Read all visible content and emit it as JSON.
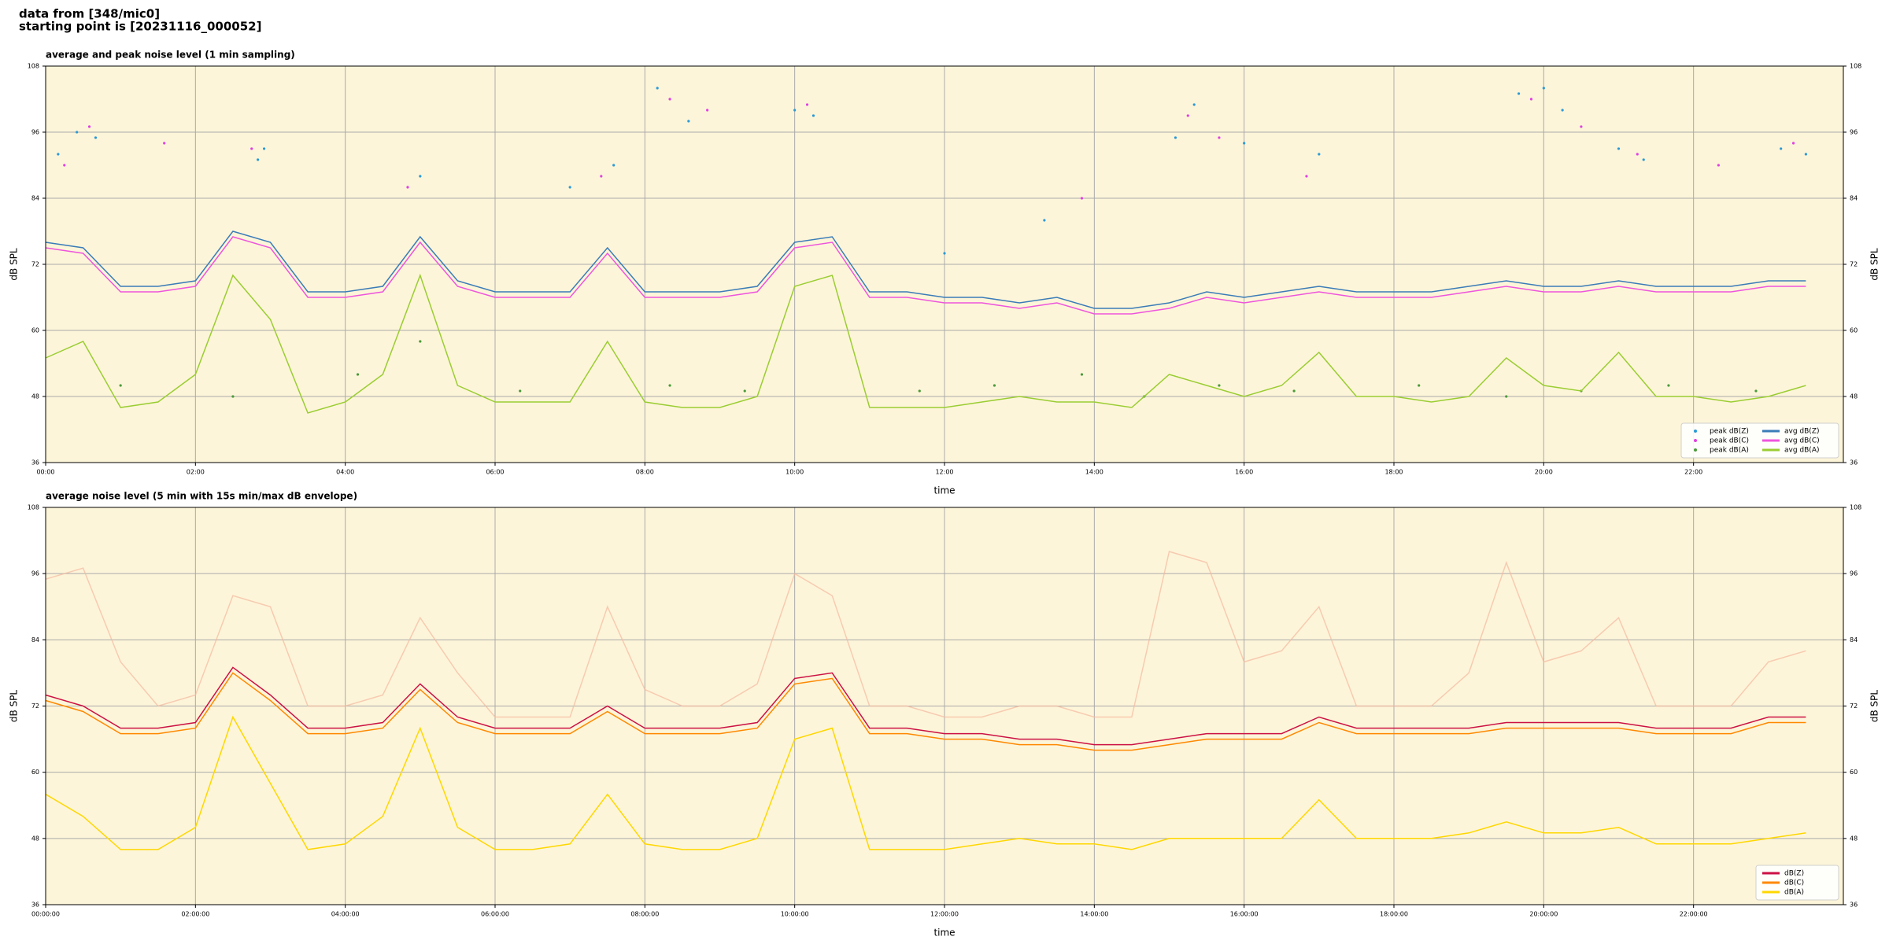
{
  "header": {
    "lines": [
      "data from [348/mic0]",
      "starting point is [20231116_000052]"
    ]
  },
  "chart_data": [
    {
      "type": "line",
      "title": "average and peak noise level (1 min sampling)",
      "x_label": "time",
      "y_label": "dB SPL",
      "xlim": [
        0,
        1440
      ],
      "ylim": [
        36,
        108
      ],
      "yticks": [
        36,
        48,
        60,
        72,
        84,
        96,
        108
      ],
      "xticks": [
        {
          "value": 0,
          "label": "00:00"
        },
        {
          "value": 120,
          "label": "02:00"
        },
        {
          "value": 240,
          "label": "04:00"
        },
        {
          "value": 360,
          "label": "06:00"
        },
        {
          "value": 480,
          "label": "08:00"
        },
        {
          "value": 600,
          "label": "10:00"
        },
        {
          "value": 720,
          "label": "12:00"
        },
        {
          "value": 840,
          "label": "14:00"
        },
        {
          "value": 960,
          "label": "16:00"
        },
        {
          "value": 1080,
          "label": "18:00"
        },
        {
          "value": 1200,
          "label": "20:00"
        },
        {
          "value": 1320,
          "label": "22:00"
        }
      ],
      "grid": true,
      "legend": "lower right",
      "legend_columns": 2,
      "background": "#fdf5d9",
      "x": [
        0,
        30,
        60,
        90,
        120,
        150,
        180,
        210,
        240,
        270,
        300,
        330,
        360,
        390,
        420,
        450,
        480,
        510,
        540,
        570,
        600,
        630,
        660,
        690,
        720,
        750,
        780,
        810,
        840,
        870,
        900,
        930,
        960,
        990,
        1020,
        1050,
        1080,
        1110,
        1140,
        1170,
        1200,
        1230,
        1260,
        1290,
        1320,
        1350,
        1380,
        1410
      ],
      "series": [
        {
          "name": "peak dB(Z)",
          "color": "#2a9ad6",
          "style": "points",
          "x": [
            10,
            25,
            40,
            170,
            175,
            300,
            420,
            455,
            490,
            515,
            600,
            615,
            720,
            800,
            905,
            920,
            960,
            1020,
            1180,
            1200,
            1215,
            1260,
            1280,
            1390,
            1410
          ],
          "values": [
            92,
            96,
            95,
            91,
            93,
            88,
            86,
            90,
            104,
            98,
            100,
            99,
            74,
            80,
            95,
            101,
            94,
            92,
            103,
            104,
            100,
            93,
            91,
            93,
            92
          ]
        },
        {
          "name": "peak dB(C)",
          "color": "#e040e0",
          "style": "points",
          "x": [
            15,
            35,
            95,
            165,
            290,
            445,
            500,
            530,
            610,
            830,
            915,
            940,
            1010,
            1190,
            1230,
            1275,
            1340,
            1400
          ],
          "values": [
            90,
            97,
            94,
            93,
            86,
            88,
            102,
            100,
            101,
            84,
            99,
            95,
            88,
            102,
            97,
            92,
            90,
            94
          ]
        },
        {
          "name": "peak dB(A)",
          "color": "#4a9a3a",
          "style": "points",
          "x": [
            60,
            150,
            250,
            300,
            380,
            500,
            560,
            700,
            760,
            830,
            880,
            940,
            1000,
            1100,
            1170,
            1230,
            1300,
            1370
          ],
          "values": [
            50,
            48,
            52,
            58,
            49,
            50,
            49,
            49,
            50,
            52,
            48,
            50,
            49,
            50,
            48,
            49,
            50,
            49
          ]
        },
        {
          "name": "avg dB(Z)",
          "color": "#3a7cb8",
          "style": "line",
          "values": [
            76,
            75,
            68,
            68,
            69,
            78,
            76,
            67,
            67,
            68,
            77,
            69,
            67,
            67,
            67,
            75,
            67,
            67,
            67,
            68,
            76,
            77,
            67,
            67,
            66,
            66,
            65,
            66,
            64,
            64,
            65,
            67,
            66,
            67,
            68,
            67,
            67,
            67,
            68,
            69,
            68,
            68,
            69,
            68,
            68,
            68,
            69,
            69
          ]
        },
        {
          "name": "avg dB(C)",
          "color": "#ee55dd",
          "style": "line",
          "values": [
            75,
            74,
            67,
            67,
            68,
            77,
            75,
            66,
            66,
            67,
            76,
            68,
            66,
            66,
            66,
            74,
            66,
            66,
            66,
            67,
            75,
            76,
            66,
            66,
            65,
            65,
            64,
            65,
            63,
            63,
            64,
            66,
            65,
            66,
            67,
            66,
            66,
            66,
            67,
            68,
            67,
            67,
            68,
            67,
            67,
            67,
            68,
            68
          ]
        },
        {
          "name": "avg dB(A)",
          "color": "#9acd32",
          "style": "line",
          "values": [
            55,
            58,
            46,
            47,
            52,
            70,
            62,
            45,
            47,
            52,
            70,
            50,
            47,
            47,
            47,
            58,
            47,
            46,
            46,
            48,
            68,
            70,
            46,
            46,
            46,
            47,
            48,
            47,
            47,
            46,
            52,
            50,
            48,
            50,
            56,
            48,
            48,
            47,
            48,
            55,
            50,
            49,
            56,
            48,
            48,
            47,
            48,
            50
          ]
        }
      ]
    },
    {
      "type": "line",
      "title": "average noise level (5 min with 15s min/max dB envelope)",
      "x_label": "time",
      "y_label": "dB SPL",
      "xlim": [
        0,
        1440
      ],
      "ylim": [
        36,
        108
      ],
      "yticks": [
        36,
        48,
        60,
        72,
        84,
        96,
        108
      ],
      "xticks": [
        {
          "value": 0,
          "label": "00:00:00"
        },
        {
          "value": 120,
          "label": "02:00:00"
        },
        {
          "value": 240,
          "label": "04:00:00"
        },
        {
          "value": 360,
          "label": "06:00:00"
        },
        {
          "value": 480,
          "label": "08:00:00"
        },
        {
          "value": 600,
          "label": "10:00:00"
        },
        {
          "value": 720,
          "label": "12:00:00"
        },
        {
          "value": 840,
          "label": "14:00:00"
        },
        {
          "value": 960,
          "label": "16:00:00"
        },
        {
          "value": 1080,
          "label": "18:00:00"
        },
        {
          "value": 1200,
          "label": "20:00:00"
        },
        {
          "value": 1320,
          "label": "22:00:00"
        }
      ],
      "grid": true,
      "legend": "lower right",
      "legend_columns": 1,
      "background": "#fdf5d9",
      "x": [
        0,
        30,
        60,
        90,
        120,
        150,
        180,
        210,
        240,
        270,
        300,
        330,
        360,
        390,
        420,
        450,
        480,
        510,
        540,
        570,
        600,
        630,
        660,
        690,
        720,
        750,
        780,
        810,
        840,
        870,
        900,
        930,
        960,
        990,
        1020,
        1050,
        1080,
        1110,
        1140,
        1170,
        1200,
        1230,
        1260,
        1290,
        1320,
        1350,
        1380,
        1410
      ],
      "envelope": {
        "color": "#f4b9a0",
        "values": [
          95,
          97,
          80,
          72,
          74,
          92,
          90,
          72,
          72,
          74,
          88,
          78,
          70,
          70,
          70,
          90,
          75,
          72,
          72,
          76,
          96,
          92,
          72,
          72,
          70,
          70,
          72,
          72,
          70,
          70,
          100,
          98,
          80,
          82,
          90,
          72,
          72,
          72,
          78,
          98,
          80,
          82,
          88,
          72,
          72,
          72,
          80,
          82
        ]
      },
      "series": [
        {
          "name": "dB(Z)",
          "color": "#cc1144",
          "style": "line",
          "values": [
            74,
            72,
            68,
            68,
            69,
            79,
            74,
            68,
            68,
            69,
            76,
            70,
            68,
            68,
            68,
            72,
            68,
            68,
            68,
            69,
            77,
            78,
            68,
            68,
            67,
            67,
            66,
            66,
            65,
            65,
            66,
            67,
            67,
            67,
            70,
            68,
            68,
            68,
            68,
            69,
            69,
            69,
            69,
            68,
            68,
            68,
            70,
            70
          ]
        },
        {
          "name": "dB(C)",
          "color": "#ff8800",
          "style": "line",
          "values": [
            73,
            71,
            67,
            67,
            68,
            78,
            73,
            67,
            67,
            68,
            75,
            69,
            67,
            67,
            67,
            71,
            67,
            67,
            67,
            68,
            76,
            77,
            67,
            67,
            66,
            66,
            65,
            65,
            64,
            64,
            65,
            66,
            66,
            66,
            69,
            67,
            67,
            67,
            67,
            68,
            68,
            68,
            68,
            67,
            67,
            67,
            69,
            69
          ]
        },
        {
          "name": "dB(A)",
          "color": "#ffd700",
          "style": "line",
          "values": [
            56,
            52,
            46,
            46,
            50,
            70,
            58,
            46,
            47,
            52,
            68,
            50,
            46,
            46,
            47,
            56,
            47,
            46,
            46,
            48,
            66,
            68,
            46,
            46,
            46,
            47,
            48,
            47,
            47,
            46,
            48,
            48,
            48,
            48,
            55,
            48,
            48,
            48,
            49,
            51,
            49,
            49,
            50,
            47,
            47,
            47,
            48,
            49
          ]
        }
      ]
    }
  ]
}
